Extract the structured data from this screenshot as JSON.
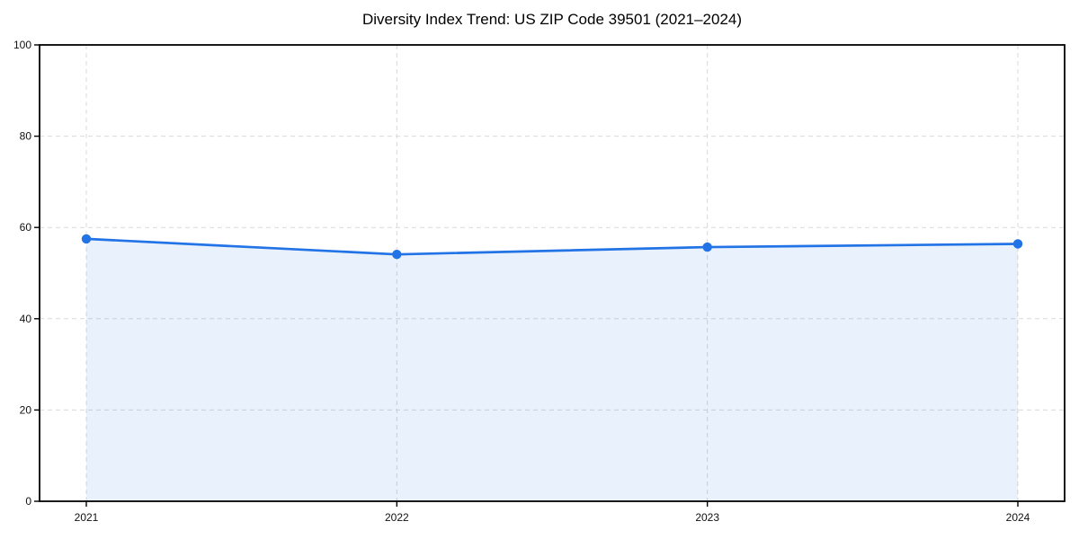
{
  "chart_data": {
    "type": "area",
    "title": "Diversity Index Trend: US ZIP Code 39501 (2021–2024)",
    "xlabel": "",
    "ylabel": "",
    "categories": [
      "2021",
      "2022",
      "2023",
      "2024"
    ],
    "series": [
      {
        "name": "Diversity Index",
        "values": [
          57.5,
          54.1,
          55.7,
          56.4
        ]
      }
    ],
    "ylim": [
      0,
      100
    ],
    "yticks": [
      0,
      20,
      40,
      60,
      80,
      100
    ],
    "grid": true,
    "grid_style": "dashed",
    "grid_axes": "both",
    "legend": "none",
    "marker": "circle",
    "colors": {
      "line": "#2273e6",
      "marker": "#2273e6",
      "fill": "#2273e6",
      "fill_opacity": 0.1,
      "grid": "#d9d9d9",
      "spine": "#000000",
      "tick_text": "#111111",
      "title_text": "#000000",
      "background": "#ffffff"
    }
  }
}
